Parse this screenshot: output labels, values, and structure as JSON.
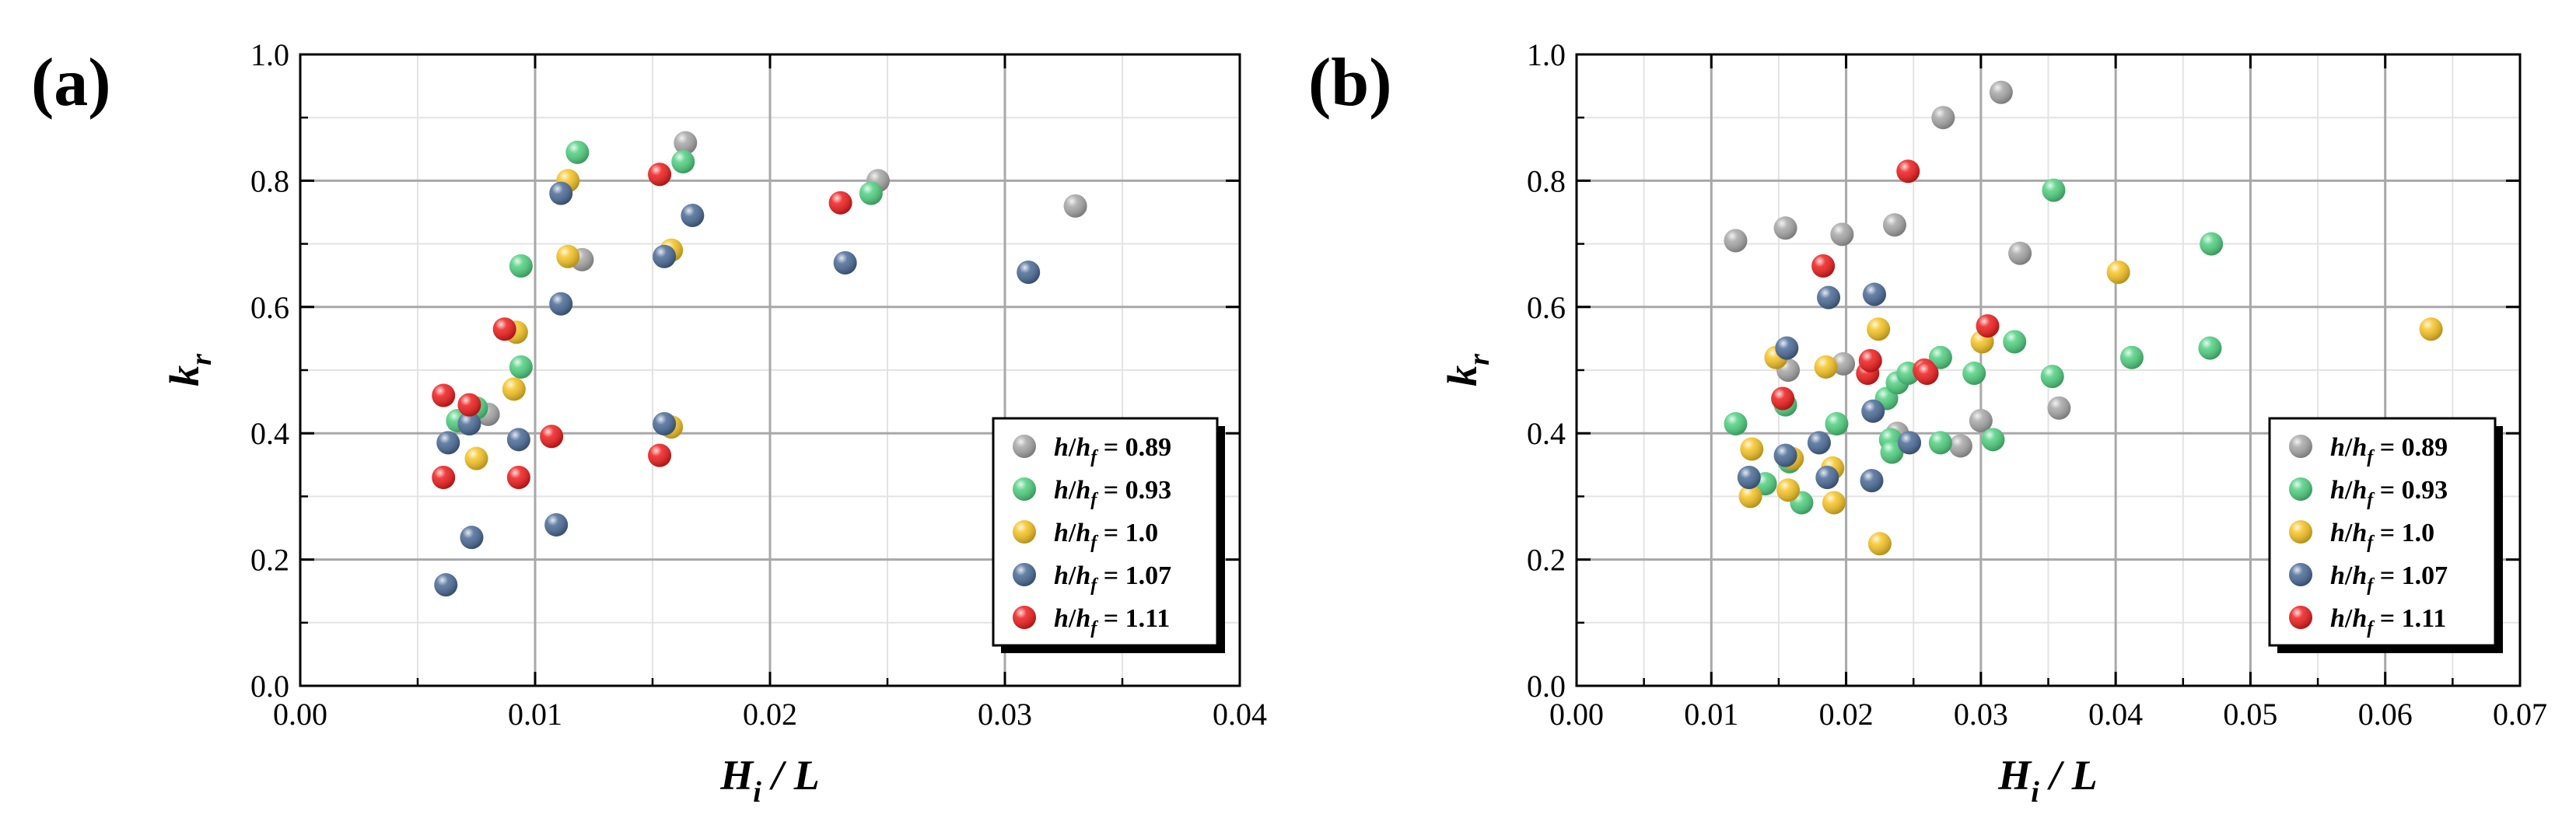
{
  "chart_data": [
    {
      "type": "scatter",
      "panel_label": "(a)",
      "xlabel": {
        "main": "H",
        "sub": "i",
        "rest": " / L"
      },
      "ylabel": {
        "main": "k",
        "sub": "r"
      },
      "xlim": [
        0,
        0.04
      ],
      "ylim": [
        0,
        1.0
      ],
      "xticks": [
        "0.00",
        "0.01",
        "0.02",
        "0.03",
        "0.04"
      ],
      "yticks": [
        "0.0",
        "0.2",
        "0.4",
        "0.6",
        "0.8",
        "1.0"
      ],
      "grid": true,
      "legend_position": "bottom-right",
      "series": [
        {
          "name": "h/hf = 0.89",
          "label": {
            "a": "h",
            "b": "/",
            "c": "h",
            "sub": "f",
            "val": " = 0.89"
          },
          "color": "#a6a6a6",
          "points": [
            [
              0.008,
              0.43
            ],
            [
              0.012,
              0.675
            ],
            [
              0.0164,
              0.86
            ],
            [
              0.0246,
              0.8
            ],
            [
              0.033,
              0.76
            ]
          ]
        },
        {
          "name": "h/hf = 0.93",
          "label": {
            "a": "h",
            "b": "/",
            "c": "h",
            "sub": "f",
            "val": " = 0.93"
          },
          "color": "#4fcf7f",
          "points": [
            [
              0.0067,
              0.42
            ],
            [
              0.0075,
              0.44
            ],
            [
              0.0094,
              0.505
            ],
            [
              0.0094,
              0.665
            ],
            [
              0.0118,
              0.845
            ],
            [
              0.0163,
              0.83
            ],
            [
              0.0243,
              0.78
            ]
          ]
        },
        {
          "name": "h/hf = 1.0",
          "label": {
            "a": "h",
            "b": "/",
            "c": "h",
            "sub": "f",
            "val": " = 1.0"
          },
          "color": "#f5c323",
          "points": [
            [
              0.0075,
              0.36
            ],
            [
              0.0091,
              0.47
            ],
            [
              0.0092,
              0.56
            ],
            [
              0.0114,
              0.68
            ],
            [
              0.0114,
              0.8
            ],
            [
              0.0158,
              0.41
            ],
            [
              0.0158,
              0.69
            ]
          ]
        },
        {
          "name": "h/hf = 1.07",
          "label": {
            "a": "h",
            "b": "/",
            "c": "h",
            "sub": "f",
            "val": " = 1.07"
          },
          "color": "#4a6a96",
          "points": [
            [
              0.0062,
              0.16
            ],
            [
              0.0063,
              0.385
            ],
            [
              0.0072,
              0.415
            ],
            [
              0.0073,
              0.235
            ],
            [
              0.0093,
              0.39
            ],
            [
              0.0109,
              0.255
            ],
            [
              0.0111,
              0.605
            ],
            [
              0.0111,
              0.78
            ],
            [
              0.0155,
              0.415
            ],
            [
              0.0155,
              0.68
            ],
            [
              0.0167,
              0.745
            ],
            [
              0.0232,
              0.67
            ],
            [
              0.031,
              0.655
            ]
          ]
        },
        {
          "name": "h/hf = 1.11",
          "label": {
            "a": "h",
            "b": "/",
            "c": "h",
            "sub": "f",
            "val": " = 1.11"
          },
          "color": "#ee1c1c",
          "points": [
            [
              0.0061,
              0.33
            ],
            [
              0.0061,
              0.46
            ],
            [
              0.0072,
              0.445
            ],
            [
              0.0087,
              0.565
            ],
            [
              0.0093,
              0.33
            ],
            [
              0.0107,
              0.395
            ],
            [
              0.0153,
              0.365
            ],
            [
              0.0153,
              0.81
            ],
            [
              0.023,
              0.765
            ]
          ]
        }
      ]
    },
    {
      "type": "scatter",
      "panel_label": "(b)",
      "xlabel": {
        "main": "H",
        "sub": "i",
        "rest": " / L"
      },
      "ylabel": {
        "main": "k",
        "sub": "r"
      },
      "xlim": [
        0,
        0.07
      ],
      "ylim": [
        0,
        1.0
      ],
      "xticks": [
        "0.00",
        "0.01",
        "0.02",
        "0.03",
        "0.04",
        "0.05",
        "0.06",
        "0.07"
      ],
      "yticks": [
        "0.0",
        "0.2",
        "0.4",
        "0.6",
        "0.8",
        "1.0"
      ],
      "grid": true,
      "legend_position": "bottom-right",
      "series": [
        {
          "name": "h/hf = 0.89",
          "label": {
            "a": "h",
            "b": "/",
            "c": "h",
            "sub": "f",
            "val": " = 0.89"
          },
          "color": "#a6a6a6",
          "points": [
            [
              0.0118,
              0.705
            ],
            [
              0.0155,
              0.725
            ],
            [
              0.0157,
              0.5
            ],
            [
              0.0197,
              0.715
            ],
            [
              0.0198,
              0.51
            ],
            [
              0.0236,
              0.73
            ],
            [
              0.0238,
              0.4
            ],
            [
              0.0272,
              0.9
            ],
            [
              0.0285,
              0.38
            ],
            [
              0.03,
              0.42
            ],
            [
              0.0315,
              0.94
            ],
            [
              0.0329,
              0.685
            ],
            [
              0.0358,
              0.44
            ]
          ]
        },
        {
          "name": "h/hf = 0.93",
          "label": {
            "a": "h",
            "b": "/",
            "c": "h",
            "sub": "f",
            "val": " = 0.93"
          },
          "color": "#4fcf7f",
          "points": [
            [
              0.0118,
              0.415
            ],
            [
              0.014,
              0.32
            ],
            [
              0.0155,
              0.445
            ],
            [
              0.0158,
              0.355
            ],
            [
              0.0167,
              0.29
            ],
            [
              0.0193,
              0.415
            ],
            [
              0.023,
              0.455
            ],
            [
              0.0233,
              0.39
            ],
            [
              0.0234,
              0.37
            ],
            [
              0.0238,
              0.48
            ],
            [
              0.0246,
              0.495
            ],
            [
              0.027,
              0.52
            ],
            [
              0.027,
              0.385
            ],
            [
              0.0295,
              0.495
            ],
            [
              0.0309,
              0.39
            ],
            [
              0.0325,
              0.545
            ],
            [
              0.0353,
              0.49
            ],
            [
              0.0354,
              0.785
            ],
            [
              0.0412,
              0.52
            ],
            [
              0.047,
              0.535
            ],
            [
              0.0471,
              0.7
            ]
          ]
        },
        {
          "name": "h/hf = 1.0",
          "label": {
            "a": "h",
            "b": "/",
            "c": "h",
            "sub": "f",
            "val": " = 1.0"
          },
          "color": "#f5c323",
          "points": [
            [
              0.0129,
              0.3
            ],
            [
              0.013,
              0.375
            ],
            [
              0.0148,
              0.52
            ],
            [
              0.0157,
              0.31
            ],
            [
              0.016,
              0.36
            ],
            [
              0.0185,
              0.505
            ],
            [
              0.019,
              0.345
            ],
            [
              0.0191,
              0.29
            ],
            [
              0.0224,
              0.565
            ],
            [
              0.0225,
              0.225
            ],
            [
              0.0301,
              0.545
            ],
            [
              0.0402,
              0.655
            ],
            [
              0.0634,
              0.565
            ]
          ]
        },
        {
          "name": "h/hf = 1.07",
          "label": {
            "a": "h",
            "b": "/",
            "c": "h",
            "sub": "f",
            "val": " = 1.07"
          },
          "color": "#4a6a96",
          "points": [
            [
              0.0128,
              0.33
            ],
            [
              0.0155,
              0.365
            ],
            [
              0.0156,
              0.535
            ],
            [
              0.018,
              0.385
            ],
            [
              0.0186,
              0.33
            ],
            [
              0.0187,
              0.615
            ],
            [
              0.0219,
              0.325
            ],
            [
              0.022,
              0.435
            ],
            [
              0.0221,
              0.62
            ],
            [
              0.0247,
              0.385
            ]
          ]
        },
        {
          "name": "h/hf = 1.11",
          "label": {
            "a": "h",
            "b": "/",
            "c": "h",
            "sub": "f",
            "val": " = 1.11"
          },
          "color": "#ee1c1c",
          "points": [
            [
              0.0153,
              0.455
            ],
            [
              0.0183,
              0.665
            ],
            [
              0.0216,
              0.495
            ],
            [
              0.0218,
              0.515
            ],
            [
              0.0246,
              0.815
            ],
            [
              0.0258,
              0.5
            ],
            [
              0.026,
              0.495
            ],
            [
              0.0305,
              0.57
            ]
          ]
        }
      ]
    }
  ]
}
